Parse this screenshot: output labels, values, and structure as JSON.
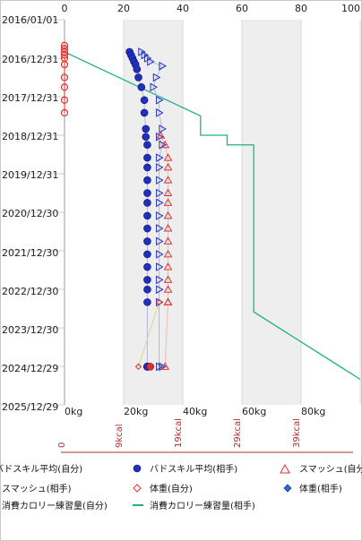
{
  "chart_data": {
    "type": "scatter",
    "title": "",
    "x_axis": {
      "label": "",
      "lim": [
        0,
        100
      ],
      "top_ticks": [
        "0",
        "20",
        "40",
        "60",
        "80",
        "100"
      ],
      "bottom_ticks": [
        "0kg",
        "20kg",
        "40kg",
        "60kg",
        "80kg"
      ],
      "shaded_bands": [
        [
          20,
          40
        ],
        [
          60,
          80
        ]
      ]
    },
    "y_axis": {
      "label": "",
      "ticks": [
        "2016/01/01",
        "2016/12/31",
        "2017/12/31",
        "2018/12/31",
        "2019/12/31",
        "2020/12/30",
        "2021/12/30",
        "2022/12/30",
        "2023/12/30",
        "2024/12/29",
        "2025/12/29"
      ]
    },
    "calorie_axis": {
      "ticks": [
        "0",
        "9kcal",
        "19kcal",
        "29kcal",
        "39kcal"
      ]
    },
    "legend": {
      "placement": "bottom",
      "items": [
        {
          "name": "バドスキル平均(自分)"
        },
        {
          "name": "バドスキル平均(相手)"
        },
        {
          "name": "スマッシュ(自分)"
        },
        {
          "name": "スマッシュ(相手)"
        },
        {
          "name": "体重(自分)"
        },
        {
          "name": "体重(相手)"
        },
        {
          "name": "消費カロリー練習量(自分)"
        },
        {
          "name": "消費カロリー練習量(相手)"
        }
      ]
    },
    "colors": {
      "self_skill": "#e23030",
      "opp_skill": "#1f2fbf",
      "smash_self": "#e23030",
      "smash_opp": "#1f2fbf",
      "weight_self": "#e23030",
      "weight_opp": "#2b6cd6",
      "cal_opp": "#21b08a"
    },
    "series": [
      {
        "name": "バドスキル平均(相手)",
        "x": [
          22,
          22.5,
          23,
          23.5,
          24,
          24.5,
          25,
          26,
          27,
          27,
          27.5,
          27.5,
          28,
          28,
          28,
          28,
          28,
          28,
          28,
          28,
          28,
          28,
          28,
          28,
          28,
          28,
          28,
          28,
          28,
          28,
          28,
          28,
          28
        ],
        "y": [
          "2016/11/01",
          "2016/12/01",
          "2016/12/31",
          "2017/02/01",
          "2017/03/01",
          "2017/04/15",
          "2017/07/01",
          "2017/10/01",
          "2018/02/01",
          "2018/06/01",
          "2018/11/01",
          "2019/01/15",
          "2019/04/01",
          "2019/08/01",
          "2019/11/01",
          "2020/03/01",
          "2020/07/01",
          "2020/10/01",
          "2021/02/01",
          "2021/06/01",
          "2021/10/01",
          "2022/02/01",
          "2022/06/01",
          "2022/10/01",
          "2023/01/01",
          "2023/05/01",
          "2025/01/01",
          "2025/01/01",
          "2025/01/01",
          "2025/01/01",
          "2025/01/01",
          "2025/01/01",
          "2025/01/01"
        ]
      },
      {
        "name": "スマッシュ(自分)",
        "x": [
          32.5,
          34,
          35,
          35,
          35,
          35,
          35,
          35,
          35,
          35,
          35,
          35,
          35,
          35,
          35,
          35,
          34
        ],
        "y": [
          "2019/01/01",
          "2019/04/01",
          "2019/08/01",
          "2019/11/01",
          "2020/03/01",
          "2020/07/01",
          "2020/10/01",
          "2021/02/01",
          "2021/06/01",
          "2021/10/01",
          "2022/02/01",
          "2022/06/01",
          "2022/10/01",
          "2023/01/01",
          "2023/05/01",
          "2023/05/01",
          "2025/01/01"
        ]
      },
      {
        "name": "スマッシュ(相手)",
        "x": [
          26,
          27,
          28,
          29,
          33,
          31,
          30,
          32,
          32,
          33,
          32,
          33,
          32,
          32,
          32,
          32,
          32,
          32,
          32,
          32,
          32,
          32,
          32,
          32,
          32,
          32,
          33
        ],
        "y": [
          "2016/11/01",
          "2016/12/01",
          "2016/12/31",
          "2017/02/01",
          "2017/03/15",
          "2017/07/01",
          "2017/10/01",
          "2018/02/01",
          "2018/06/01",
          "2018/11/01",
          "2019/01/15",
          "2019/04/01",
          "2019/08/01",
          "2019/11/01",
          "2020/03/01",
          "2020/07/01",
          "2020/10/01",
          "2021/02/01",
          "2021/06/01",
          "2021/10/01",
          "2022/02/01",
          "2022/06/01",
          "2022/10/01",
          "2023/01/01",
          "2023/05/01",
          "2025/01/01",
          "2025/01/01"
        ]
      },
      {
        "name": "体重(自分)",
        "x": [
          32,
          25
        ],
        "y": [
          "2023/05/01",
          "2025/01/01"
        ]
      },
      {
        "name": "体重(相手)",
        "x": [
          29
        ],
        "y": [
          "2025/01/01"
        ]
      },
      {
        "name": "消費カロリー練習量(自分)",
        "x": [
          0,
          0,
          0,
          0,
          0,
          0,
          0,
          0,
          0,
          0
        ],
        "y": [
          "2016/09/01",
          "2016/10/01",
          "2016/11/01",
          "2016/12/01",
          "2016/12/31",
          "2017/03/01",
          "2017/07/01",
          "2017/10/01",
          "2018/02/01",
          "2018/06/01"
        ]
      },
      {
        "name": "消費カロリー練習量(相手)",
        "x": [
          0,
          0,
          46,
          46,
          55,
          55,
          64,
          64,
          100
        ],
        "y": [
          "2016/10/01",
          "2016/11/01",
          "2018/07/01",
          "2018/12/31",
          "2018/12/31",
          "2019/04/01",
          "2019/04/01",
          "2023/08/01",
          "2025/05/01"
        ]
      }
    ]
  }
}
